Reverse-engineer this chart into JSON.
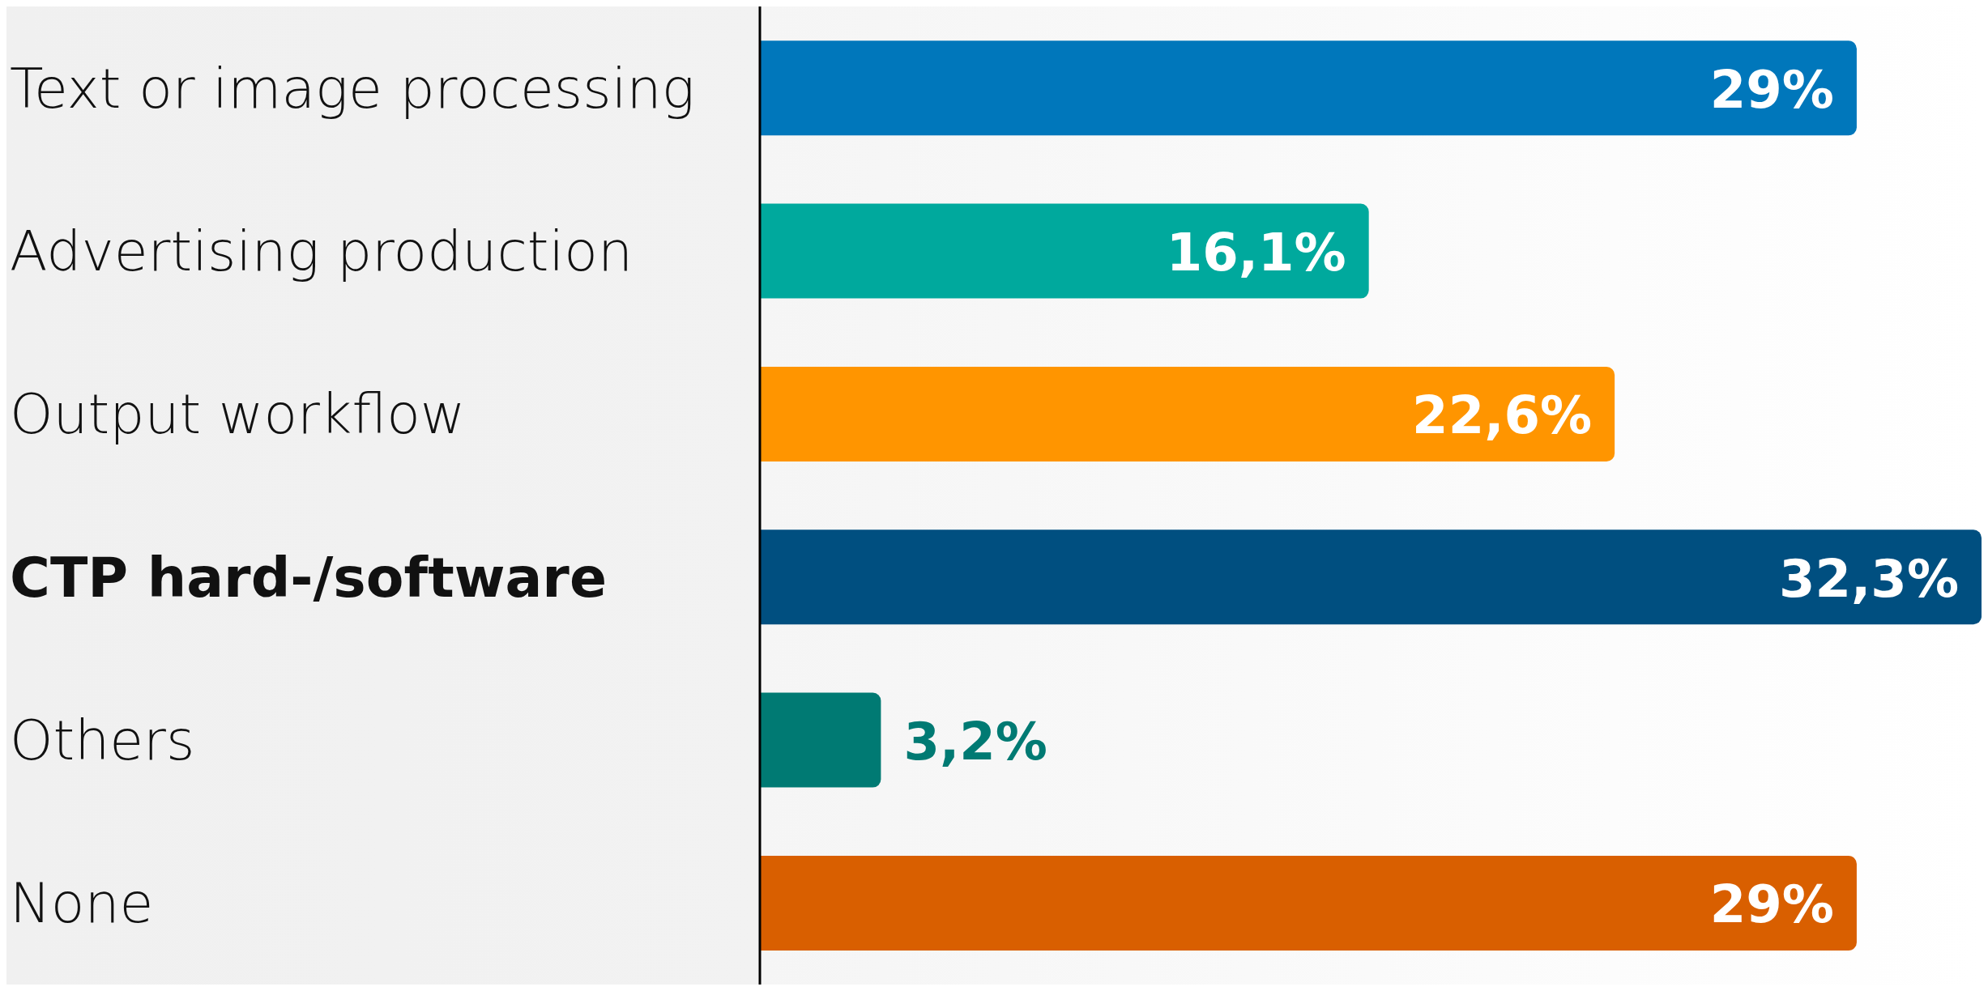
{
  "chart_data": {
    "type": "bar",
    "orientation": "horizontal",
    "categories": [
      "Text or image processing",
      "Advertising production",
      "Output workflow",
      "CTP hard-/software",
      "Others",
      "None"
    ],
    "values": [
      29,
      16.1,
      22.6,
      32.3,
      3.2,
      29
    ],
    "colors": [
      "#0077bb",
      "#00a99d",
      "#ff9500",
      "#004f80",
      "#007a73",
      "#d95f00"
    ],
    "value_labels": [
      "29%",
      "16,1%",
      "22,6%",
      "32,3%",
      "3,2%",
      "29%"
    ]
  }
}
